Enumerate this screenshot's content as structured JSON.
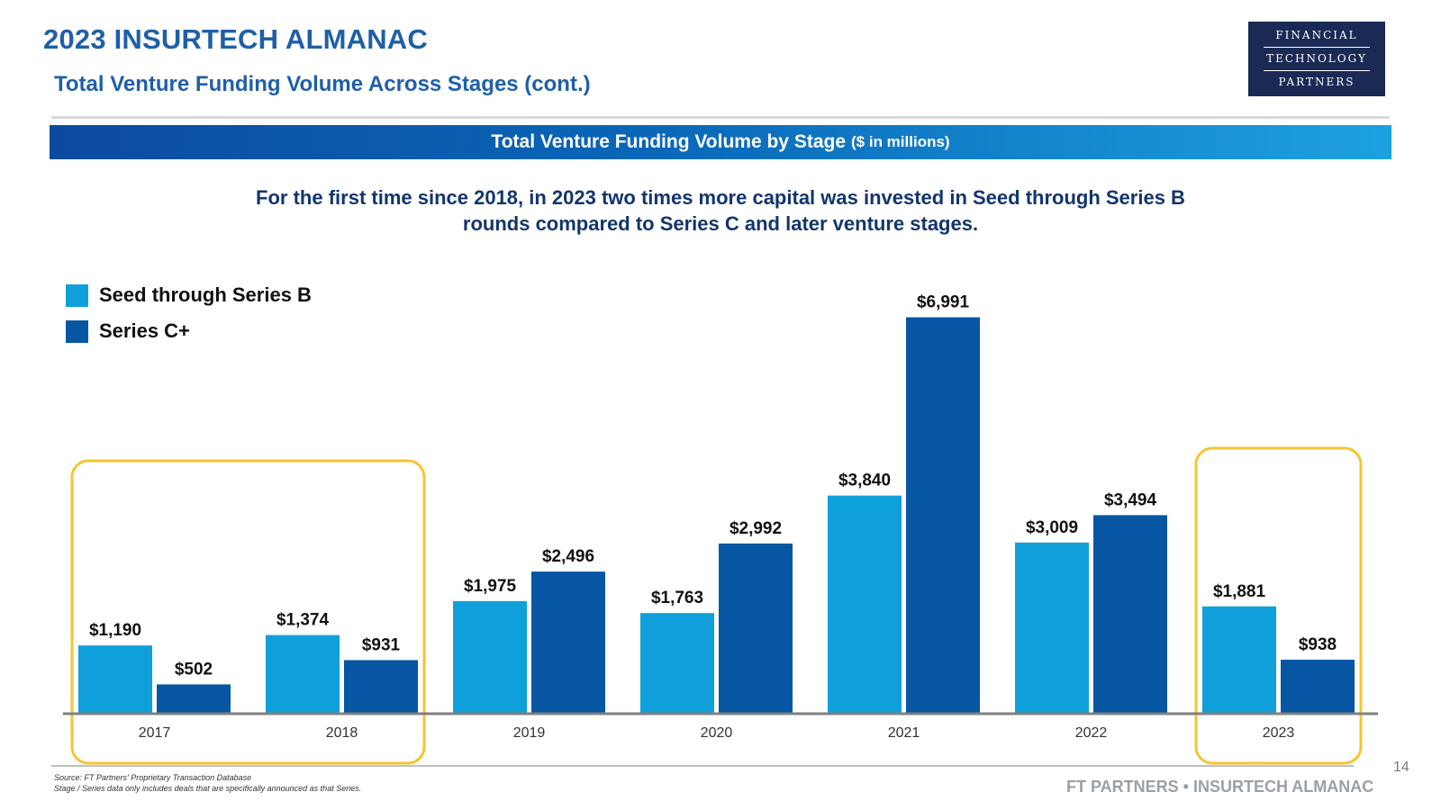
{
  "header": {
    "title": "2023 INSURTECH ALMANAC",
    "subtitle": "Total Venture Funding Volume Across Stages (cont.)"
  },
  "logo": {
    "line1": "FINANCIAL",
    "line2": "TECHNOLOGY",
    "line3": "PARTNERS"
  },
  "banner": {
    "title": "Total Venture Funding Volume by Stage",
    "unit": "($ in millions)"
  },
  "callout": "For the first time since 2018, in 2023 two times more capital was invested in Seed through Series B rounds compared to Series C and later venture stages.",
  "colors": {
    "seed": "#0fa0dc",
    "seriesC": "#0656a3",
    "highlight": "#f5c531",
    "axis": "#7f7f7f",
    "title": "#1f5fa8"
  },
  "chart_data": {
    "type": "bar",
    "title": "Total Venture Funding Volume by Stage ($ in millions)",
    "categories": [
      "2017",
      "2018",
      "2019",
      "2020",
      "2021",
      "2022",
      "2023"
    ],
    "series": [
      {
        "name": "Seed through Series B",
        "values": [
          1190,
          1374,
          1975,
          1763,
          3840,
          3009,
          1881
        ],
        "labels": [
          "$1,190",
          "$1,374",
          "$1,975",
          "$1,763",
          "$3,840",
          "$3,009",
          "$1,881"
        ]
      },
      {
        "name": "Series C+",
        "values": [
          502,
          931,
          2496,
          2992,
          6991,
          3494,
          938
        ],
        "labels": [
          "$502",
          "$931",
          "$2,496",
          "$2,992",
          "$6,991",
          "$3,494",
          "$938"
        ]
      }
    ],
    "highlighted_categories": [
      "2017",
      "2018",
      "2023"
    ],
    "legend_position": "top-left",
    "grid": false,
    "xlabel": "",
    "ylabel": ""
  },
  "footer": {
    "page_number": "14",
    "source_line1": "Source: FT Partners' Proprietary Transaction Database",
    "source_line2": "Stage / Series data only includes deals that are specifically announced as that Series.",
    "brand": "FT PARTNERS • INSURTECH ALMANAC"
  }
}
